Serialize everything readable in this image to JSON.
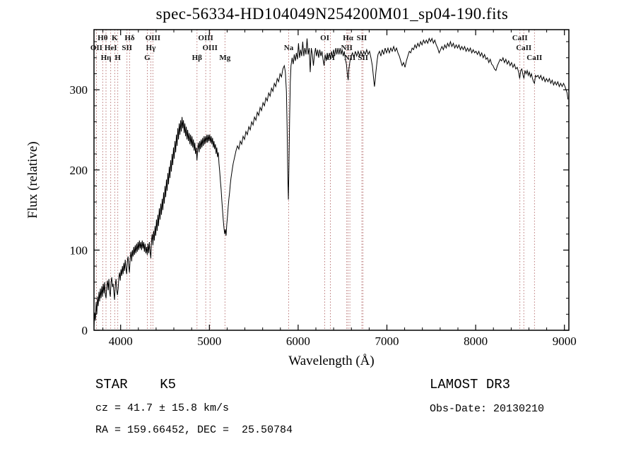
{
  "footer": {
    "class_label": "STAR    K5",
    "survey": "LAMOST DR3",
    "cz": "cz = 41.7 ± 15.8 km/s",
    "obs_date": "Obs-Date: 20130210",
    "ra_dec": "RA = 159.66452, DEC =  25.50784"
  },
  "chart_data": {
    "type": "line",
    "title": "spec-56334-HD104049N254200M01_sp04-190.fits",
    "xlabel": "Wavelength (Å)",
    "ylabel": "Flux (relative)",
    "xlim": [
      3700,
      9050
    ],
    "ylim": [
      0,
      375
    ],
    "xticks": [
      4000,
      5000,
      6000,
      7000,
      8000,
      9000
    ],
    "yticks": [
      0,
      100,
      200,
      300
    ],
    "x_minor_step": 200,
    "y_minor_step": 20,
    "grid": false,
    "legend": "none",
    "line_color": "#000000",
    "marker_color": "#a85454",
    "spectral_lines": [
      {
        "label": "OII",
        "wl": 3727,
        "row": 2
      },
      {
        "label": "Hθ",
        "wl": 3798,
        "row": 1
      },
      {
        "label": "Hη",
        "wl": 3835,
        "row": 3
      },
      {
        "label": "HeI",
        "wl": 3889,
        "row": 2
      },
      {
        "label": "K",
        "wl": 3933,
        "row": 1
      },
      {
        "label": "H",
        "wl": 3968,
        "row": 3
      },
      {
        "label": "SII",
        "wl": 4072,
        "row": 2
      },
      {
        "label": "Hδ",
        "wl": 4102,
        "row": 1
      },
      {
        "label": "G",
        "wl": 4300,
        "row": 3
      },
      {
        "label": "Hγ",
        "wl": 4340,
        "row": 2
      },
      {
        "label": "OIII",
        "wl": 4363,
        "row": 1
      },
      {
        "label": "Hβ",
        "wl": 4861,
        "row": 3
      },
      {
        "label": "OIII",
        "wl": 4959,
        "row": 1
      },
      {
        "label": "OIII",
        "wl": 5007,
        "row": 2
      },
      {
        "label": "Mg",
        "wl": 5175,
        "row": 3
      },
      {
        "label": "Na",
        "wl": 5893,
        "row": 2
      },
      {
        "label": "OI",
        "wl": 6300,
        "row": 1
      },
      {
        "label": "OI",
        "wl": 6364,
        "row": 3
      },
      {
        "label": "NII",
        "wl": 6548,
        "row": 2
      },
      {
        "label": "Hα",
        "wl": 6563,
        "row": 1
      },
      {
        "label": "NII",
        "wl": 6583,
        "row": 3
      },
      {
        "label": "SII",
        "wl": 6717,
        "row": 1
      },
      {
        "label": "SII",
        "wl": 6731,
        "row": 3
      },
      {
        "label": "CaII",
        "wl": 8498,
        "row": 1
      },
      {
        "label": "CaII",
        "wl": 8542,
        "row": 2
      },
      {
        "label": "CaII",
        "wl": 8662,
        "row": 3
      }
    ],
    "points_flat": [
      3700,
      4,
      3708,
      22,
      3716,
      12,
      3724,
      35,
      3732,
      20,
      3740,
      42,
      3748,
      30,
      3756,
      48,
      3764,
      36,
      3772,
      52,
      3780,
      40,
      3788,
      55,
      3796,
      42,
      3804,
      58,
      3812,
      46,
      3820,
      60,
      3828,
      44,
      3836,
      40,
      3844,
      56,
      3852,
      62,
      3860,
      50,
      3868,
      64,
      3876,
      48,
      3884,
      42,
      3892,
      60,
      3900,
      66,
      3908,
      54,
      3916,
      58,
      3924,
      48,
      3932,
      38,
      3940,
      56,
      3948,
      64,
      3956,
      50,
      3964,
      44,
      3972,
      52,
      3980,
      66,
      3988,
      72,
      3996,
      62,
      4004,
      76,
      4012,
      68,
      4020,
      80,
      4028,
      70,
      4036,
      84,
      4044,
      74,
      4052,
      88,
      4060,
      78,
      4068,
      70,
      4076,
      86,
      4084,
      92,
      4092,
      80,
      4100,
      72,
      4108,
      90,
      4116,
      98,
      4124,
      86,
      4132,
      100,
      4140,
      92,
      4148,
      104,
      4156,
      94,
      4164,
      106,
      4172,
      96,
      4180,
      108,
      4188,
      98,
      4196,
      110,
      4204,
      100,
      4212,
      112,
      4220,
      102,
      4228,
      110,
      4236,
      100,
      4244,
      112,
      4252,
      102,
      4260,
      110,
      4268,
      98,
      4276,
      108,
      4284,
      96,
      4292,
      104,
      4300,
      94,
      4308,
      108,
      4316,
      96,
      4324,
      110,
      4332,
      98,
      4340,
      90,
      4348,
      112,
      4356,
      120,
      4364,
      106,
      4372,
      124,
      4380,
      112,
      4388,
      130,
      4396,
      118,
      4404,
      138,
      4412,
      124,
      4420,
      144,
      4428,
      130,
      4436,
      152,
      4444,
      138,
      4452,
      158,
      4460,
      144,
      4468,
      164,
      4476,
      150,
      4484,
      172,
      4492,
      158,
      4500,
      180,
      4508,
      166,
      4516,
      188,
      4524,
      174,
      4532,
      196,
      4540,
      182,
      4548,
      204,
      4556,
      190,
      4564,
      212,
      4572,
      198,
      4580,
      220,
      4588,
      206,
      4596,
      228,
      4604,
      214,
      4612,
      236,
      4620,
      222,
      4628,
      244,
      4636,
      230,
      4644,
      252,
      4652,
      238,
      4660,
      258,
      4668,
      244,
      4676,
      262,
      4684,
      248,
      4692,
      266,
      4700,
      252,
      4708,
      262,
      4716,
      246,
      4724,
      258,
      4732,
      242,
      4740,
      254,
      4748,
      238,
      4756,
      250,
      4764,
      236,
      4772,
      246,
      4780,
      232,
      4788,
      244,
      4796,
      230,
      4804,
      242,
      4812,
      228,
      4820,
      238,
      4828,
      224,
      4836,
      234,
      4844,
      220,
      4852,
      228,
      4860,
      212,
      4868,
      226,
      4876,
      234,
      4884,
      222,
      4892,
      236,
      4900,
      226,
      4908,
      238,
      4916,
      228,
      4924,
      240,
      4932,
      230,
      4940,
      242,
      4948,
      232,
      4956,
      242,
      4964,
      234,
      4972,
      244,
      4980,
      234,
      4988,
      244,
      4996,
      236,
      5004,
      244,
      5012,
      234,
      5020,
      242,
      5028,
      232,
      5036,
      240,
      5044,
      228,
      5052,
      236,
      5060,
      226,
      5068,
      232,
      5076,
      220,
      5084,
      228,
      5092,
      216,
      5100,
      222,
      5108,
      208,
      5116,
      198,
      5124,
      186,
      5132,
      176,
      5140,
      162,
      5148,
      150,
      5156,
      138,
      5164,
      128,
      5172,
      120,
      5180,
      126,
      5188,
      118,
      5196,
      132,
      5204,
      142,
      5212,
      154,
      5220,
      164,
      5228,
      172,
      5236,
      182,
      5244,
      190,
      5252,
      196,
      5260,
      202,
      5268,
      208,
      5276,
      212,
      5284,
      216,
      5292,
      220,
      5300,
      224,
      5316,
      230,
      5332,
      226,
      5348,
      236,
      5364,
      232,
      5380,
      242,
      5396,
      238,
      5412,
      248,
      5428,
      244,
      5444,
      254,
      5460,
      250,
      5476,
      260,
      5492,
      256,
      5508,
      266,
      5524,
      262,
      5540,
      272,
      5556,
      268,
      5572,
      278,
      5588,
      274,
      5604,
      284,
      5620,
      280,
      5636,
      290,
      5652,
      286,
      5668,
      296,
      5684,
      292,
      5700,
      302,
      5716,
      298,
      5732,
      308,
      5748,
      304,
      5764,
      314,
      5780,
      310,
      5796,
      320,
      5812,
      316,
      5828,
      326,
      5844,
      330,
      5856,
      322,
      5868,
      298,
      5876,
      252,
      5884,
      190,
      5890,
      163,
      5896,
      200,
      5904,
      262,
      5912,
      310,
      5920,
      330,
      5932,
      340,
      5944,
      332,
      5956,
      344,
      5968,
      336,
      5980,
      346,
      5992,
      338,
      6004,
      358,
      6016,
      340,
      6028,
      350,
      6040,
      342,
      6052,
      360,
      6064,
      342,
      6076,
      352,
      6088,
      344,
      6100,
      364,
      6112,
      344,
      6124,
      352,
      6136,
      322,
      6148,
      352,
      6160,
      344,
      6172,
      330,
      6184,
      344,
      6196,
      352,
      6208,
      342,
      6220,
      350,
      6232,
      340,
      6244,
      350,
      6256,
      342,
      6268,
      348,
      6280,
      338,
      6292,
      330,
      6304,
      344,
      6316,
      336,
      6328,
      346,
      6340,
      338,
      6352,
      346,
      6364,
      338,
      6376,
      348,
      6388,
      340,
      6400,
      350,
      6412,
      342,
      6424,
      352,
      6436,
      344,
      6448,
      352,
      6460,
      344,
      6472,
      352,
      6484,
      344,
      6496,
      350,
      6508,
      342,
      6520,
      348,
      6532,
      338,
      6544,
      332,
      6556,
      318,
      6564,
      312,
      6572,
      326,
      6584,
      336,
      6596,
      342,
      6612,
      346,
      6628,
      340,
      6644,
      348,
      6660,
      342,
      6676,
      348,
      6692,
      342,
      6708,
      348,
      6724,
      342,
      6740,
      348,
      6756,
      344,
      6772,
      350,
      6788,
      344,
      6804,
      348,
      6820,
      340,
      6836,
      330,
      6852,
      312,
      6860,
      304,
      6868,
      312,
      6876,
      322,
      6884,
      330,
      6892,
      338,
      6900,
      344,
      6916,
      348,
      6932,
      342,
      6948,
      350,
      6964,
      344,
      6980,
      352,
      6996,
      346,
      7012,
      352,
      7028,
      346,
      7044,
      352,
      7060,
      348,
      7076,
      354,
      7092,
      348,
      7108,
      352,
      7124,
      346,
      7140,
      342,
      7156,
      336,
      7172,
      330,
      7188,
      334,
      7204,
      328,
      7220,
      336,
      7236,
      342,
      7252,
      348,
      7268,
      346,
      7284,
      352,
      7300,
      350,
      7316,
      356,
      7332,
      352,
      7348,
      358,
      7364,
      354,
      7380,
      360,
      7396,
      356,
      7412,
      362,
      7428,
      358,
      7444,
      362,
      7460,
      358,
      7476,
      364,
      7492,
      360,
      7508,
      364,
      7524,
      358,
      7540,
      362,
      7556,
      356,
      7572,
      352,
      7588,
      346,
      7604,
      350,
      7620,
      354,
      7636,
      350,
      7652,
      356,
      7668,
      352,
      7684,
      358,
      7700,
      354,
      7716,
      360,
      7732,
      354,
      7748,
      358,
      7764,
      352,
      7780,
      356,
      7796,
      352,
      7812,
      356,
      7828,
      350,
      7844,
      354,
      7860,
      350,
      7876,
      354,
      7892,
      348,
      7908,
      352,
      7924,
      348,
      7940,
      352,
      7956,
      346,
      7972,
      350,
      7988,
      346,
      8004,
      348,
      8020,
      344,
      8036,
      348,
      8052,
      342,
      8068,
      346,
      8084,
      340,
      8100,
      344,
      8116,
      338,
      8132,
      340,
      8148,
      334,
      8164,
      338,
      8180,
      332,
      8196,
      330,
      8212,
      326,
      8228,
      324,
      8244,
      330,
      8260,
      334,
      8276,
      338,
      8292,
      336,
      8308,
      340,
      8324,
      334,
      8340,
      338,
      8356,
      332,
      8372,
      336,
      8388,
      330,
      8404,
      334,
      8420,
      328,
      8436,
      332,
      8452,
      326,
      8468,
      328,
      8484,
      322,
      8496,
      314,
      8508,
      324,
      8520,
      326,
      8534,
      318,
      8544,
      314,
      8556,
      324,
      8568,
      320,
      8580,
      324,
      8592,
      318,
      8604,
      322,
      8616,
      316,
      8628,
      320,
      8640,
      314,
      8652,
      310,
      8662,
      308,
      8674,
      318,
      8686,
      316,
      8702,
      318,
      8718,
      314,
      8734,
      318,
      8750,
      312,
      8766,
      316,
      8782,
      310,
      8798,
      314,
      8814,
      310,
      8830,
      314,
      8846,
      308,
      8862,
      312,
      8878,
      306,
      8894,
      310,
      8910,
      306,
      8926,
      310,
      8942,
      304,
      8958,
      308,
      8974,
      304,
      8990,
      308,
      9006,
      304,
      9018,
      300,
      9030,
      296,
      9040,
      288
    ]
  }
}
